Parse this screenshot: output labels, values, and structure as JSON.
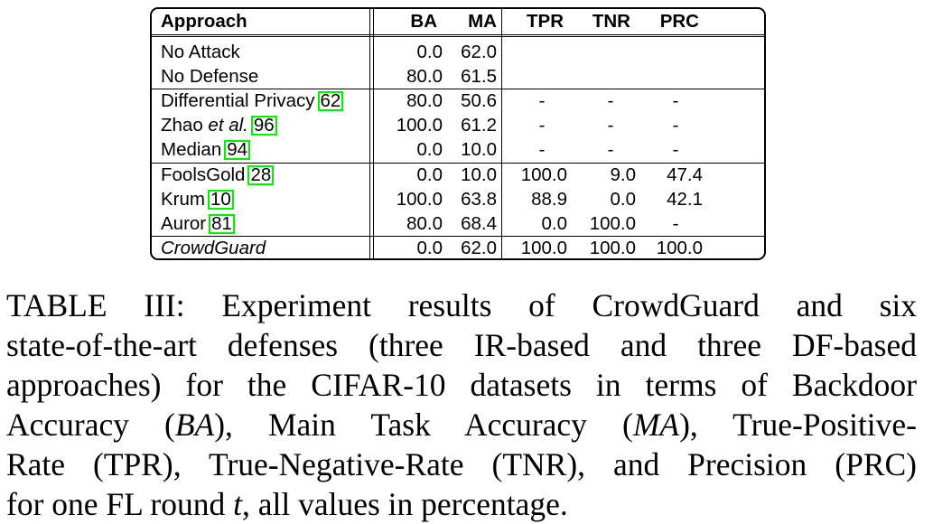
{
  "table": {
    "columns": [
      "Approach",
      "BA",
      "MA",
      "TPR",
      "TNR",
      "PRC"
    ],
    "rows": [
      {
        "approach": "No Attack",
        "cite": "",
        "ba": "0.0",
        "ma": "62.0",
        "tpr": "",
        "tnr": "",
        "prc": ""
      },
      {
        "approach": "No Defense",
        "cite": "",
        "ba": "80.0",
        "ma": "61.5",
        "tpr": "",
        "tnr": "",
        "prc": ""
      },
      {
        "approach": "Differential Privacy",
        "cite": "62",
        "ba": "80.0",
        "ma": "50.6",
        "tpr": "-",
        "tnr": "-",
        "prc": "-"
      },
      {
        "approach_pre": "Zhao ",
        "approach_it": "et al.",
        "cite": "96",
        "ba": "100.0",
        "ma": "61.2",
        "tpr": "-",
        "tnr": "-",
        "prc": "-"
      },
      {
        "approach": "Median",
        "cite": "94",
        "ba": "0.0",
        "ma": "10.0",
        "tpr": "-",
        "tnr": "-",
        "prc": "-"
      },
      {
        "approach": "FoolsGold",
        "cite": "28",
        "ba": "0.0",
        "ma": "10.0",
        "tpr": "100.0",
        "tnr": "9.0",
        "prc": "47.4"
      },
      {
        "approach": "Krum",
        "cite": "10",
        "ba": "100.0",
        "ma": "63.8",
        "tpr": "88.9",
        "tnr": "0.0",
        "prc": "42.1"
      },
      {
        "approach": "Auror",
        "cite": "81",
        "ba": "80.0",
        "ma": "68.4",
        "tpr": "0.0",
        "tnr": "100.0",
        "prc": "-"
      },
      {
        "approach": "CrowdGuard",
        "cite": "",
        "ba": "0.0",
        "ma": "62.0",
        "tpr": "100.0",
        "tnr": "100.0",
        "prc": "100.0"
      }
    ]
  },
  "caption": {
    "label": "TABLE III:",
    "l1": "Experiment results of CrowdGuard and six",
    "l2": "state-of-the-art defenses (three IR-based and three DF-based",
    "l3": "approaches) for the CIFAR-10 datasets in terms of Backdoor",
    "l4a": "Accuracy (",
    "l4m": "BA",
    "l4b": "), Main Task Accuracy (",
    "l4m2": "MA",
    "l4c": "), True-Positive-",
    "l5": "Rate (TPR), True-Negative-Rate (TNR), and Precision (PRC)",
    "l6a": "for one FL round ",
    "l6m": "t",
    "l6b": ", all values in percentage."
  }
}
